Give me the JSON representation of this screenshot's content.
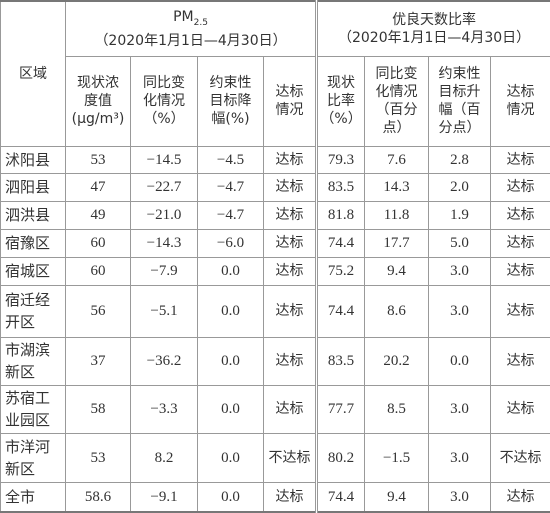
{
  "header": {
    "region": "区域",
    "pm": {
      "main": "PM",
      "sub": "2.5",
      "period": "（2020年1月1日—4月30日）"
    },
    "good": {
      "main": "优良天数比率",
      "period": "（2020年1月1日—4月30日）"
    },
    "cols": [
      [
        "现状浓",
        "度值",
        "(μg/m³)"
      ],
      [
        "同比变",
        "化情况",
        "（%）"
      ],
      [
        "约束性",
        "目标降",
        "幅(%)"
      ],
      [
        "达标",
        "情况"
      ],
      [
        "现状",
        "比率",
        "（%）"
      ],
      [
        "同比变",
        "化情况",
        "（百分",
        "点）"
      ],
      [
        "约束性",
        "目标升",
        "幅（百",
        "分点）"
      ],
      [
        "达标",
        "情况"
      ]
    ]
  },
  "table": {
    "rows": [
      [
        "沭阳县",
        "53",
        "−14.5",
        "−4.5",
        "达标",
        "79.3",
        "7.6",
        "2.8",
        "达标"
      ],
      [
        "泗阳县",
        "47",
        "−22.7",
        "−4.7",
        "达标",
        "83.5",
        "14.3",
        "2.0",
        "达标"
      ],
      [
        "泗洪县",
        "49",
        "−21.0",
        "−4.7",
        "达标",
        "81.8",
        "11.8",
        "1.9",
        "达标"
      ],
      [
        "宿豫区",
        "60",
        "−14.3",
        "−6.0",
        "达标",
        "74.4",
        "17.7",
        "5.0",
        "达标"
      ],
      [
        "宿城区",
        "60",
        "−7.9",
        "0.0",
        "达标",
        "75.2",
        "9.4",
        "3.0",
        "达标"
      ],
      [
        "宿迁经开区",
        "56",
        "−5.1",
        "0.0",
        "达标",
        "74.4",
        "8.6",
        "3.0",
        "达标"
      ],
      [
        "市湖滨新区",
        "37",
        "−36.2",
        "0.0",
        "达标",
        "83.5",
        "20.2",
        "0.0",
        "达标"
      ],
      [
        "苏宿工业园区",
        "58",
        "−3.3",
        "0.0",
        "达标",
        "77.7",
        "8.5",
        "3.0",
        "达标"
      ],
      [
        "市洋河新区",
        "53",
        "8.2",
        "0.0",
        "不达标",
        "80.2",
        "−1.5",
        "3.0",
        "不达标"
      ],
      [
        "全市",
        "58.6",
        "−9.1",
        "0.0",
        "达标",
        "74.4",
        "9.4",
        "3.0",
        "达标"
      ]
    ]
  }
}
